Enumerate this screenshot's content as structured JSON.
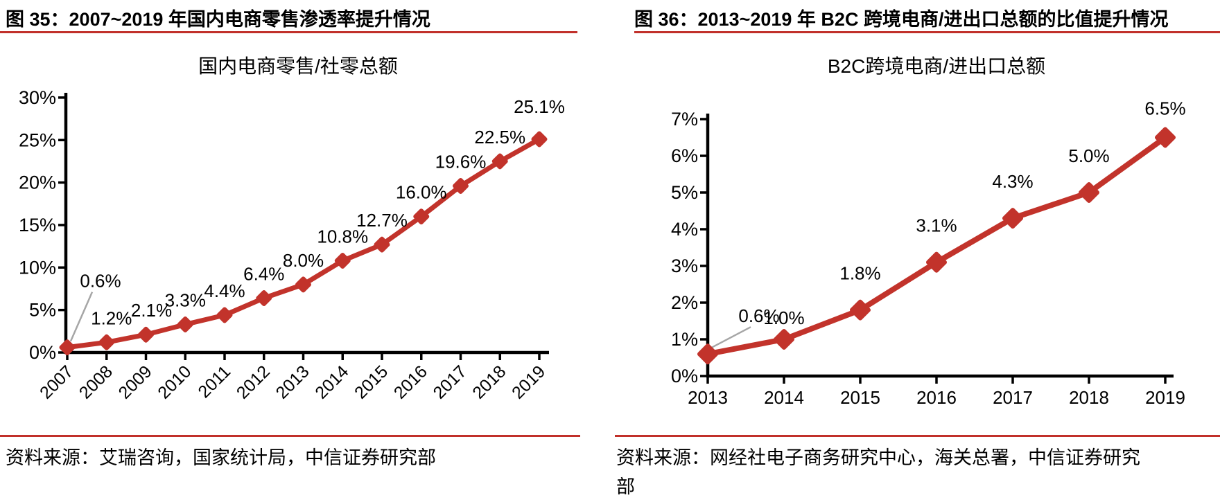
{
  "colors": {
    "accent_red": "#C1302A",
    "line_red": "#C2332B",
    "leader_gray": "#A6A6A6",
    "axis_black": "#000000"
  },
  "figures": [
    {
      "caption": "图 35：2007~2019 年国内电商零售渗透率提升情况",
      "source": "资料来源：艾瑞咨询，国家统计局，中信证券研究部"
    },
    {
      "caption": "图 36：2013~2019 年 B2C 跨境电商/进出口总额的比值提升情况",
      "source": "资料来源：网经社电子商务研究中心，海关总署，中信证券研究部"
    }
  ],
  "chart_data": [
    {
      "type": "line",
      "title": "国内电商零售/社零总额",
      "categories": [
        "2007",
        "2008",
        "2009",
        "2010",
        "2011",
        "2012",
        "2013",
        "2014",
        "2015",
        "2016",
        "2017",
        "2018",
        "2019"
      ],
      "values": [
        0.6,
        1.2,
        2.1,
        3.3,
        4.4,
        6.4,
        8.0,
        10.8,
        12.7,
        16.0,
        19.6,
        22.5,
        25.1
      ],
      "data_labels": [
        "0.6%",
        "1.2%",
        "2.1%",
        "3.3%",
        "4.4%",
        "6.4%",
        "8.0%",
        "10.8%",
        "12.7%",
        "16.0%",
        "19.6%",
        "22.5%",
        "25.1%"
      ],
      "ylim": [
        0,
        30
      ],
      "ytick_step": 5,
      "ytick_labels": [
        "0%",
        "5%",
        "10%",
        "15%",
        "20%",
        "25%",
        "30%"
      ],
      "x_tick_rotation": -45,
      "grid": false,
      "legend": "none",
      "marker": "diamond",
      "line_color": "#C2332B"
    },
    {
      "type": "line",
      "title": "B2C跨境电商/进出口总额",
      "categories": [
        "2013",
        "2014",
        "2015",
        "2016",
        "2017",
        "2018",
        "2019"
      ],
      "values": [
        0.6,
        1.0,
        1.8,
        3.1,
        4.3,
        5.0,
        6.5
      ],
      "data_labels": [
        "0.6%",
        "1.0%",
        "1.8%",
        "3.1%",
        "4.3%",
        "5.0%",
        "6.5%"
      ],
      "ylim": [
        0,
        7
      ],
      "ytick_step": 1,
      "ytick_labels": [
        "0%",
        "1%",
        "2%",
        "3%",
        "4%",
        "5%",
        "6%",
        "7%"
      ],
      "x_tick_rotation": 0,
      "grid": false,
      "legend": "none",
      "marker": "diamond",
      "line_color": "#C2332B"
    }
  ]
}
